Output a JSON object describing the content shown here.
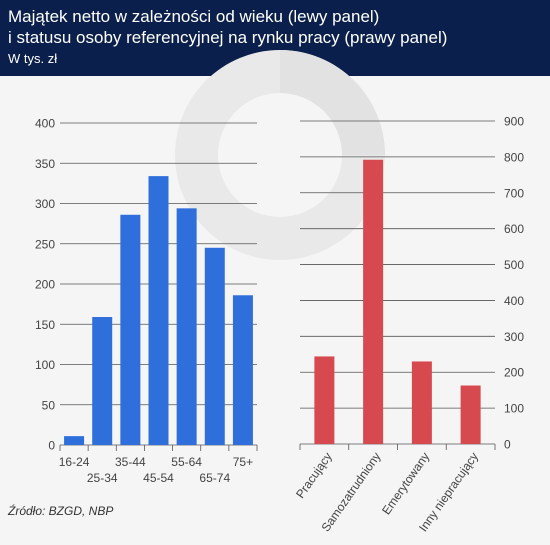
{
  "header": {
    "title_line1": "Majątek netto w zależności od wieku (lewy panel)",
    "title_line2": "i statusu osoby referencyjnej na rynku pracy (prawy panel)",
    "subtitle": "W tys. zł"
  },
  "source": "Źródło: BZGD, NBP",
  "colors": {
    "header_bg": "#0a1f4b",
    "left_bars": "#2f6fdc",
    "right_bars": "#d64a4f",
    "background": "#f5f5f5"
  },
  "chart_data": [
    {
      "type": "bar",
      "panel": "left",
      "categories": [
        "16-24",
        "25-34",
        "35-44",
        "45-54",
        "55-64",
        "65-74",
        "75+"
      ],
      "values": [
        11,
        159,
        286,
        334,
        294,
        245,
        186
      ],
      "ylim": [
        0,
        400
      ],
      "yticks": [
        0,
        50,
        100,
        150,
        200,
        250,
        300,
        350,
        400
      ],
      "axis_side": "left",
      "grid": true
    },
    {
      "type": "bar",
      "panel": "right",
      "categories": [
        "Pracujący",
        "Samozatrudniony",
        "Emerytowany",
        "Inny niepracujący"
      ],
      "values": [
        244,
        792,
        230,
        163
      ],
      "ylim": [
        0,
        900
      ],
      "yticks": [
        0,
        100,
        200,
        300,
        400,
        500,
        600,
        700,
        800,
        900
      ],
      "axis_side": "right",
      "grid": true
    }
  ]
}
